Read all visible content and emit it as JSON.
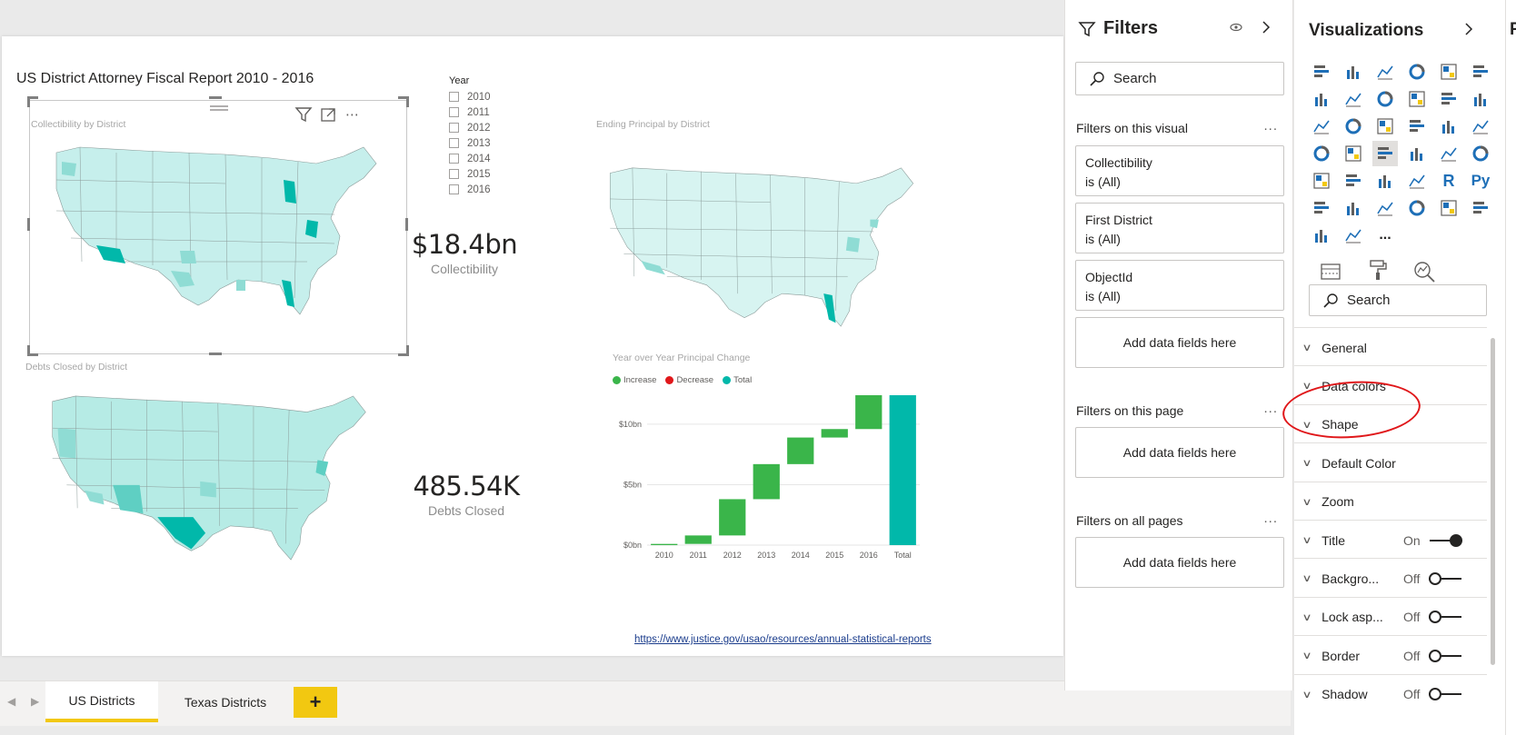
{
  "report": {
    "title": "US District Attorney Fiscal Report 2010 - 2016",
    "source_link": "https://www.justice.gov/usao/resources/annual-statistical-reports"
  },
  "visuals": {
    "map1_title": "Collectibility by District",
    "map2_title": "Ending Principal by District",
    "map3_title": "Debts Closed by District",
    "waterfall_title": "Year over Year Principal Change"
  },
  "slicer": {
    "title": "Year",
    "items": [
      "2010",
      "2011",
      "2012",
      "2013",
      "2014",
      "2015",
      "2016"
    ]
  },
  "cards": {
    "collectibility_value": "$18.4bn",
    "collectibility_label": "Collectibility",
    "debts_value": "485.54K",
    "debts_label": "Debts Closed"
  },
  "chart_data": {
    "type": "bar",
    "subtype": "waterfall",
    "title": "Year over Year Principal Change",
    "categories": [
      "2010",
      "2011",
      "2012",
      "2013",
      "2014",
      "2015",
      "2016",
      "Total"
    ],
    "start": [
      0,
      0.1,
      0.8,
      3.8,
      6.7,
      8.9,
      9.6,
      0
    ],
    "end": [
      0.1,
      0.8,
      3.8,
      6.7,
      8.9,
      9.6,
      12.4,
      12.4
    ],
    "kinds": [
      "increase",
      "increase",
      "increase",
      "increase",
      "increase",
      "increase",
      "increase",
      "total"
    ],
    "y_ticks": [
      "$0bn",
      "$5bn",
      "$10bn"
    ],
    "ylim": [
      0,
      12.4
    ],
    "legend": [
      {
        "label": "Increase",
        "color": "#3ab54a"
      },
      {
        "label": "Decrease",
        "color": "#e0171a"
      },
      {
        "label": "Total",
        "color": "#01b8aa"
      }
    ],
    "legend_position": "top-left",
    "grid": true
  },
  "page_tabs": {
    "tabs": [
      "US Districts",
      "Texas Districts"
    ],
    "add_label": "+"
  },
  "filters_pane": {
    "title": "Filters",
    "search_placeholder": "Search",
    "on_visual_title": "Filters on this visual",
    "visual_filters": [
      {
        "name": "Collectibility",
        "state": "is (All)"
      },
      {
        "name": "First District",
        "state": "is (All)"
      },
      {
        "name": "ObjectId",
        "state": "is (All)"
      }
    ],
    "add_fields": "Add data fields here",
    "on_page_title": "Filters on this page",
    "on_all_pages_title": "Filters on all pages",
    "more": "..."
  },
  "viz_pane": {
    "title": "Visualizations",
    "icons": [
      "stacked-bar",
      "stacked-column",
      "clustered-bar",
      "clustered-column",
      "100-bar",
      "100-column",
      "line",
      "area",
      "stacked-area",
      "line-column",
      "line-clustered",
      "ribbon",
      "waterfall",
      "funnel",
      "scatter",
      "pie",
      "donut",
      "treemap",
      "map",
      "filled-map",
      "shape-map",
      "gauge",
      "card",
      "multi-row-card",
      "kpi",
      "slicer",
      "table",
      "matrix",
      "r-visual",
      "python-visual",
      "decomposition-tree",
      "key-influencers",
      "qa",
      "smart-narrative",
      "paginated",
      "arcgis",
      "power-apps",
      "power-automate",
      "more"
    ],
    "r_label": "R",
    "py_label": "Py",
    "more_label": "...",
    "search_placeholder": "Search",
    "format_rows": [
      {
        "name": "General"
      },
      {
        "name": "Data colors"
      },
      {
        "name": "Shape"
      },
      {
        "name": "Default Color"
      },
      {
        "name": "Zoom"
      },
      {
        "name": "Title",
        "toggle": "On"
      },
      {
        "name": "Backgro...",
        "toggle": "Off"
      },
      {
        "name": "Lock asp...",
        "toggle": "Off"
      },
      {
        "name": "Border",
        "toggle": "Off"
      },
      {
        "name": "Shadow",
        "toggle": "Off"
      }
    ]
  },
  "fields_stub": {
    "letter": "F"
  },
  "colors": {
    "map_light": "#c6efec",
    "map_mid": "#8fdcd4",
    "map_dark": "#01b8aa",
    "accent_yellow": "#f2c811"
  }
}
